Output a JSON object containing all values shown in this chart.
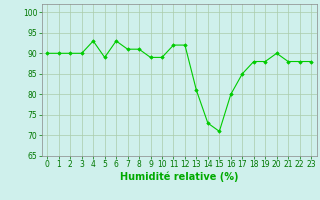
{
  "x": [
    0,
    1,
    2,
    3,
    4,
    5,
    6,
    7,
    8,
    9,
    10,
    11,
    12,
    13,
    14,
    15,
    16,
    17,
    18,
    19,
    20,
    21,
    22,
    23
  ],
  "y": [
    90,
    90,
    90,
    90,
    93,
    89,
    93,
    91,
    91,
    89,
    89,
    92,
    92,
    81,
    73,
    71,
    80,
    85,
    88,
    88,
    90,
    88,
    88,
    88
  ],
  "line_color": "#00cc00",
  "marker": "D",
  "marker_size": 1.8,
  "line_width": 0.8,
  "bg_color": "#cff0ec",
  "grid_color": "#aaccaa",
  "xlabel": "Humidité relative (%)",
  "ylim": [
    65,
    102
  ],
  "xlim": [
    -0.5,
    23.5
  ],
  "yticks": [
    65,
    70,
    75,
    80,
    85,
    90,
    95,
    100
  ],
  "xticks": [
    0,
    1,
    2,
    3,
    4,
    5,
    6,
    7,
    8,
    9,
    10,
    11,
    12,
    13,
    14,
    15,
    16,
    17,
    18,
    19,
    20,
    21,
    22,
    23
  ],
  "tick_fontsize": 5.5,
  "xlabel_fontsize": 7,
  "xlabel_color": "#00aa00",
  "tick_color": "#007700"
}
